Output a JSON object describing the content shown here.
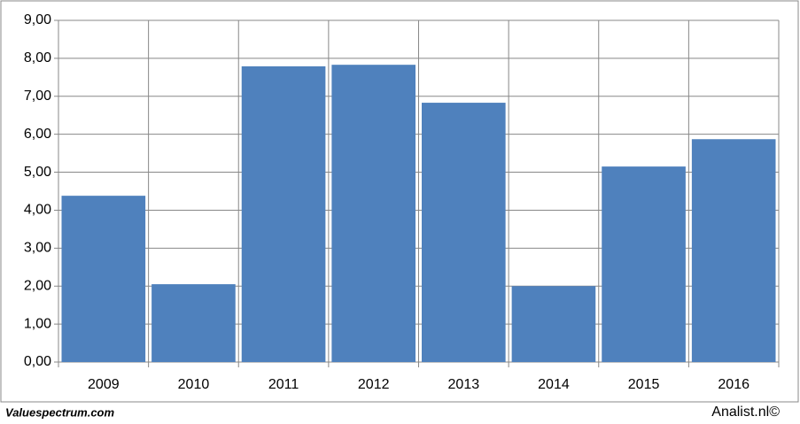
{
  "chart_data": {
    "type": "bar",
    "categories": [
      "2009",
      "2010",
      "2011",
      "2012",
      "2013",
      "2014",
      "2015",
      "2016"
    ],
    "values": [
      4.38,
      2.05,
      7.79,
      7.83,
      6.83,
      2.0,
      5.15,
      5.87
    ],
    "color": "#4f81bd",
    "ylim": [
      0,
      9
    ],
    "yticks": [
      {
        "value": 0,
        "label": "0,00"
      },
      {
        "value": 1,
        "label": "1,00"
      },
      {
        "value": 2,
        "label": "2,00"
      },
      {
        "value": 3,
        "label": "3,00"
      },
      {
        "value": 4,
        "label": "4,00"
      },
      {
        "value": 5,
        "label": "5,00"
      },
      {
        "value": 6,
        "label": "6,00"
      },
      {
        "value": 7,
        "label": "7,00"
      },
      {
        "value": 8,
        "label": "8,00"
      },
      {
        "value": 9,
        "label": "9,00"
      }
    ],
    "grid": true,
    "annotations": [
      "Valuespectrum.com",
      "Analist.nl©"
    ]
  }
}
